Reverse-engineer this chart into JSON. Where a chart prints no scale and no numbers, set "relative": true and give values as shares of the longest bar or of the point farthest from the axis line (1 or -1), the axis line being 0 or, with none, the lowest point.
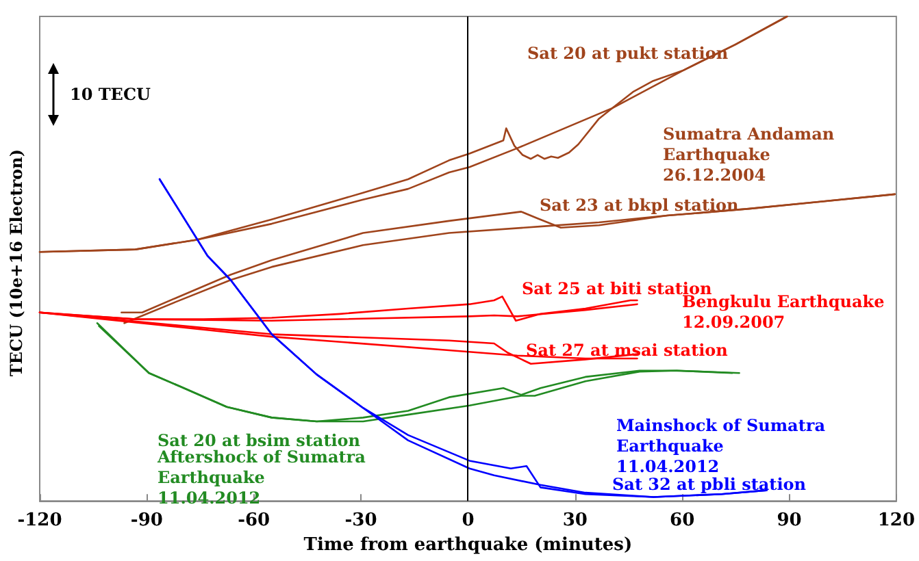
{
  "chart_data": {
    "type": "line",
    "xlabel": "Time from earthquake (minutes)",
    "ylabel": "TECU (10e+16 Electron)",
    "relative": true,
    "xlim": [
      -120,
      120
    ],
    "xticks": [
      -120,
      -90,
      -60,
      -30,
      0,
      30,
      60,
      90,
      120
    ],
    "grid": false,
    "legend": false,
    "marker": "none",
    "line_style": "solid",
    "ref_lines": [
      {
        "axis": "x",
        "value": 0,
        "color": "#000000"
      }
    ],
    "annotations": [
      "10 TECU",
      "Sumatra Andaman\nEarthquake\n26.12.2004",
      "Bengkulu Earthquake\n12.09.2007",
      "Aftershock of Sumatra\nEarthquake\n11.04.2012",
      "Mainshock of Sumatra\nEarthquake\n11.04.2012"
    ],
    "series": [
      {
        "name": "Sat 20 at pukt station",
        "color": "#a0441c",
        "x": [
          -120,
          -93.2,
          -76,
          -55,
          -29.4,
          -16.8,
          -5.3,
          0.4,
          9.9,
          10.7,
          13,
          15.3,
          17.6,
          19.5,
          21.4,
          23.3,
          25.2,
          28.3,
          30.9,
          36.7,
          40.5,
          46.2,
          51.9,
          60.4,
          74.9,
          89.4
        ],
        "values": [
          0.514,
          0.519,
          0.539,
          0.581,
          0.636,
          0.664,
          0.703,
          0.717,
          0.744,
          0.769,
          0.733,
          0.714,
          0.706,
          0.714,
          0.706,
          0.711,
          0.708,
          0.719,
          0.736,
          0.789,
          0.811,
          0.844,
          0.867,
          0.889,
          0.942,
          1
        ]
      },
      {
        "color": "#a0441c",
        "x": [
          -120,
          -93.2,
          -76,
          -55,
          -29.4,
          -16.8,
          -5.3,
          0.4,
          13.8,
          40.5,
          60.4,
          74.9,
          89.4
        ],
        "values": [
          0.514,
          0.519,
          0.539,
          0.572,
          0.622,
          0.644,
          0.678,
          0.689,
          0.728,
          0.811,
          0.889,
          0.942,
          1
        ]
      },
      {
        "name": "Sat 23 at bkpl station",
        "color": "#a0441c",
        "x": [
          -97.1,
          -91.3,
          -81.8,
          -66.5,
          -55,
          -29.4,
          -5.3,
          14.9,
          19.5,
          26,
          36.7,
          55.8,
          78.7,
          97.8,
          119.6
        ],
        "values": [
          0.389,
          0.389,
          0.419,
          0.467,
          0.497,
          0.553,
          0.578,
          0.597,
          0.583,
          0.564,
          0.569,
          0.589,
          0.603,
          0.617,
          0.633
        ]
      },
      {
        "color": "#a0441c",
        "x": [
          -96.3,
          -81.8,
          -66.5,
          -55,
          -29.4,
          -5.3,
          21.4,
          36.7,
          55.8,
          78.7,
          97.8,
          119.6
        ],
        "values": [
          0.367,
          0.411,
          0.456,
          0.483,
          0.528,
          0.553,
          0.567,
          0.575,
          0.589,
          0.603,
          0.617,
          0.633
        ]
      },
      {
        "name": "Sat 25 at biti station",
        "color": "#ff0000",
        "x": [
          -120,
          -108.5,
          -93.2,
          -74.1,
          -55,
          -35.9,
          -16.8,
          0.4,
          7.3,
          9.6,
          13.4,
          20.3,
          32.9,
          45.5,
          47.4
        ],
        "values": [
          0.389,
          0.383,
          0.375,
          0.375,
          0.378,
          0.386,
          0.397,
          0.406,
          0.414,
          0.422,
          0.372,
          0.386,
          0.397,
          0.414,
          0.414
        ]
      },
      {
        "color": "#ff0000",
        "x": [
          -120,
          -93.2,
          -55,
          0.4,
          7.3,
          13.8,
          32.9,
          47.4
        ],
        "values": [
          0.389,
          0.375,
          0.372,
          0.381,
          0.383,
          0.381,
          0.394,
          0.406
        ]
      },
      {
        "name": "Sat 27 at msai station",
        "color": "#ff0000",
        "x": [
          -120,
          -55,
          -5.3,
          7.3,
          11.1,
          17.6,
          32.9,
          47.4
        ],
        "values": [
          0.389,
          0.344,
          0.331,
          0.325,
          0.306,
          0.283,
          0.292,
          0.303
        ]
      },
      {
        "color": "#ff0000",
        "x": [
          -120,
          -55,
          -5.3,
          13.8,
          32.9,
          47.4
        ],
        "values": [
          0.389,
          0.339,
          0.311,
          0.3,
          0.294,
          0.294
        ]
      },
      {
        "name": "Sat 20 at bsim station",
        "color": "#228b22",
        "x": [
          -103.9,
          -89.4,
          -80.6,
          -67.6,
          -55,
          -42.4,
          -29.4,
          -16.8,
          -5.3,
          9.9,
          14.9,
          20.3,
          32.9,
          48.1,
          58.5,
          76
        ],
        "values": [
          0.367,
          0.264,
          0.236,
          0.194,
          0.172,
          0.164,
          0.172,
          0.186,
          0.214,
          0.233,
          0.219,
          0.233,
          0.256,
          0.269,
          0.269,
          0.264
        ]
      },
      {
        "color": "#228b22",
        "x": [
          -103.4,
          -89.4,
          -80.6,
          -67.6,
          -55,
          -42.4,
          -29.4,
          -16.8,
          0.4,
          14.9,
          18.7,
          32.9,
          48.1,
          58.5,
          74
        ],
        "values": [
          0.361,
          0.264,
          0.236,
          0.194,
          0.172,
          0.164,
          0.164,
          0.178,
          0.197,
          0.217,
          0.217,
          0.247,
          0.267,
          0.269,
          0.264
        ]
      },
      {
        "name": "Sat 32 at pbli station",
        "color": "#0000ff",
        "x": [
          -86.4,
          -73,
          -66.5,
          -55,
          -42.4,
          -29.4,
          -16.8,
          0.4,
          12,
          16.4,
          20.3,
          32.9,
          52,
          71.1,
          83.7
        ],
        "values": [
          0.664,
          0.506,
          0.456,
          0.344,
          0.261,
          0.192,
          0.136,
          0.083,
          0.067,
          0.072,
          0.028,
          0.014,
          0.008,
          0.014,
          0.022
        ]
      },
      {
        "color": "#0000ff",
        "x": [
          -86.4,
          -73,
          -66.5,
          -55,
          -42.4,
          -29.4,
          -16.8,
          0.4,
          7.3,
          20.3,
          32.9,
          52,
          71.1,
          83.7
        ],
        "values": [
          0.664,
          0.506,
          0.456,
          0.344,
          0.261,
          0.192,
          0.125,
          0.067,
          0.053,
          0.033,
          0.017,
          0.008,
          0.014,
          0.022
        ]
      }
    ]
  }
}
